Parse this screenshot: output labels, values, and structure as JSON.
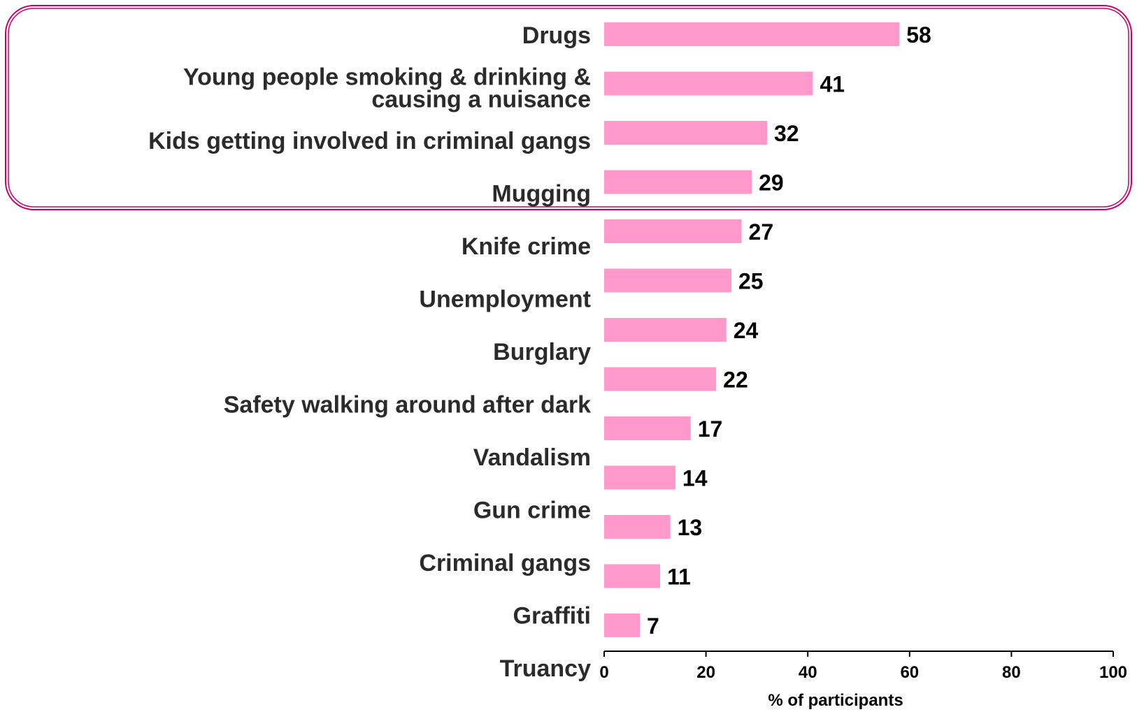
{
  "chart_data": {
    "type": "bar",
    "orientation": "horizontal",
    "categories": [
      "Drugs",
      "Young people smoking & drinking & causing a nuisance",
      "Kids getting involved in criminal gangs",
      "Mugging",
      "Knife crime",
      "Unemployment",
      "Burglary",
      "Safety walking around after dark",
      "Vandalism",
      "Gun crime",
      "Criminal gangs",
      "Graffiti",
      "Truancy"
    ],
    "values": [
      58,
      41,
      32,
      29,
      27,
      25,
      24,
      22,
      17,
      14,
      13,
      11,
      7
    ],
    "xlabel": "% of participants",
    "ylabel": "",
    "xlim": [
      0,
      100
    ],
    "xticks": [
      0,
      20,
      40,
      60,
      80,
      100
    ],
    "grid": false,
    "bar_color": "#ff99cc",
    "highlight_color": "#cc0066",
    "highlight_categories": [
      "Drugs",
      "Young people smoking & drinking & causing a nuisance",
      "Kids getting involved in criminal gangs"
    ]
  }
}
